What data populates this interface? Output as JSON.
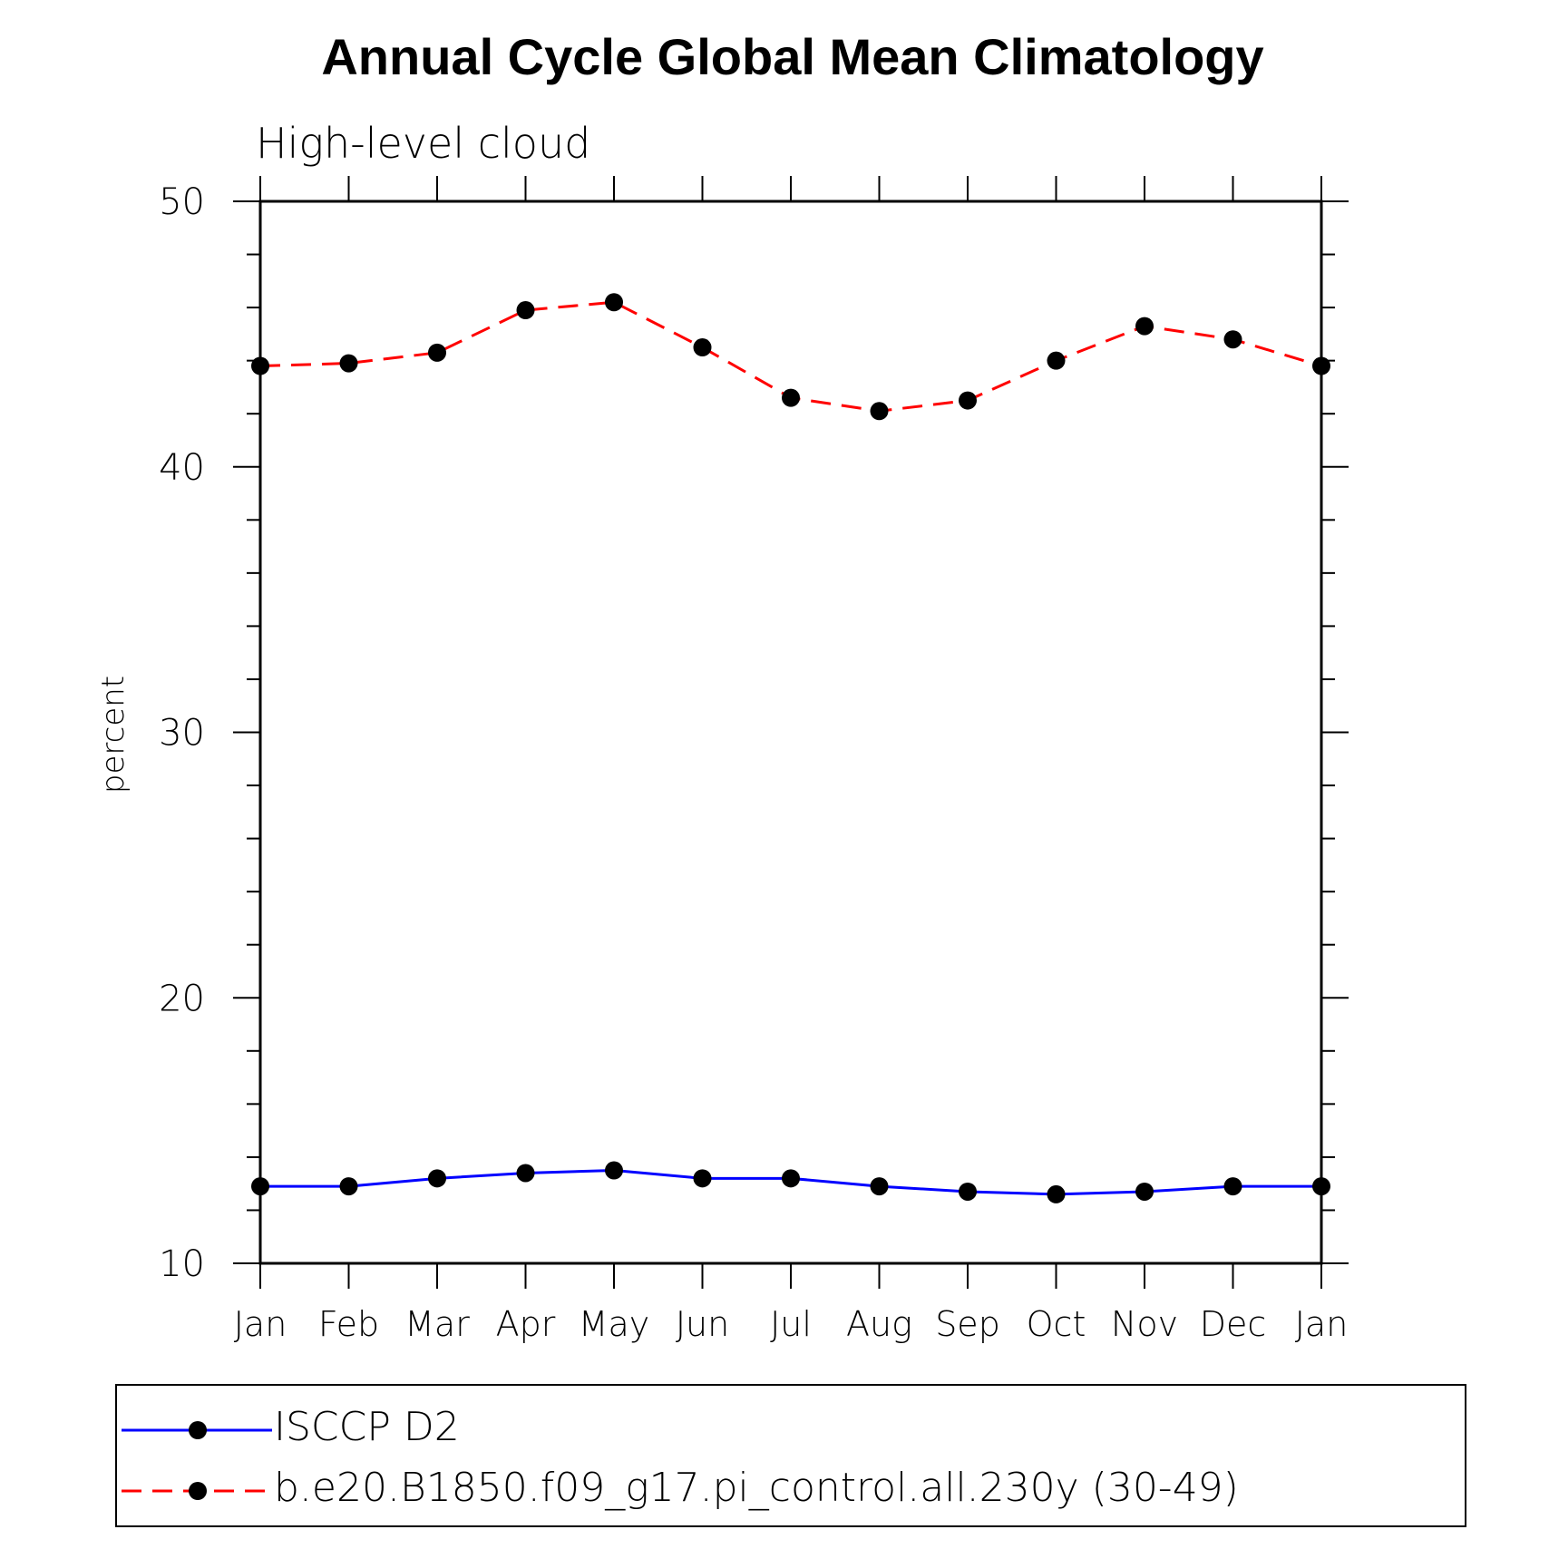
{
  "chart_data": {
    "type": "line",
    "title": "Annual Cycle Global Mean Climatology",
    "subtitle": "High-level cloud",
    "xlabel": "",
    "ylabel": "percent",
    "categories": [
      "Jan",
      "Feb",
      "Mar",
      "Apr",
      "May",
      "Jun",
      "Jul",
      "Aug",
      "Sep",
      "Oct",
      "Nov",
      "Dec",
      "Jan"
    ],
    "ylim": [
      10,
      50
    ],
    "yticks": [
      10,
      20,
      30,
      40,
      50
    ],
    "grid": false,
    "legend_position": "bottom",
    "series": [
      {
        "name": "ISCCP D2",
        "color": "#0000ff",
        "line_style": "solid",
        "marker": "filled-circle",
        "values": [
          12.9,
          12.9,
          13.2,
          13.4,
          13.5,
          13.2,
          13.2,
          12.9,
          12.7,
          12.6,
          12.7,
          12.9,
          12.9
        ]
      },
      {
        "name": "b.e20.B1850.f09_g17.pi_control.all.230y (30-49)",
        "color": "#ff0000",
        "line_style": "dashed",
        "marker": "filled-circle",
        "values": [
          43.8,
          43.9,
          44.3,
          45.9,
          46.2,
          44.5,
          42.6,
          42.1,
          42.5,
          44.0,
          45.3,
          44.8,
          43.8
        ]
      }
    ]
  }
}
